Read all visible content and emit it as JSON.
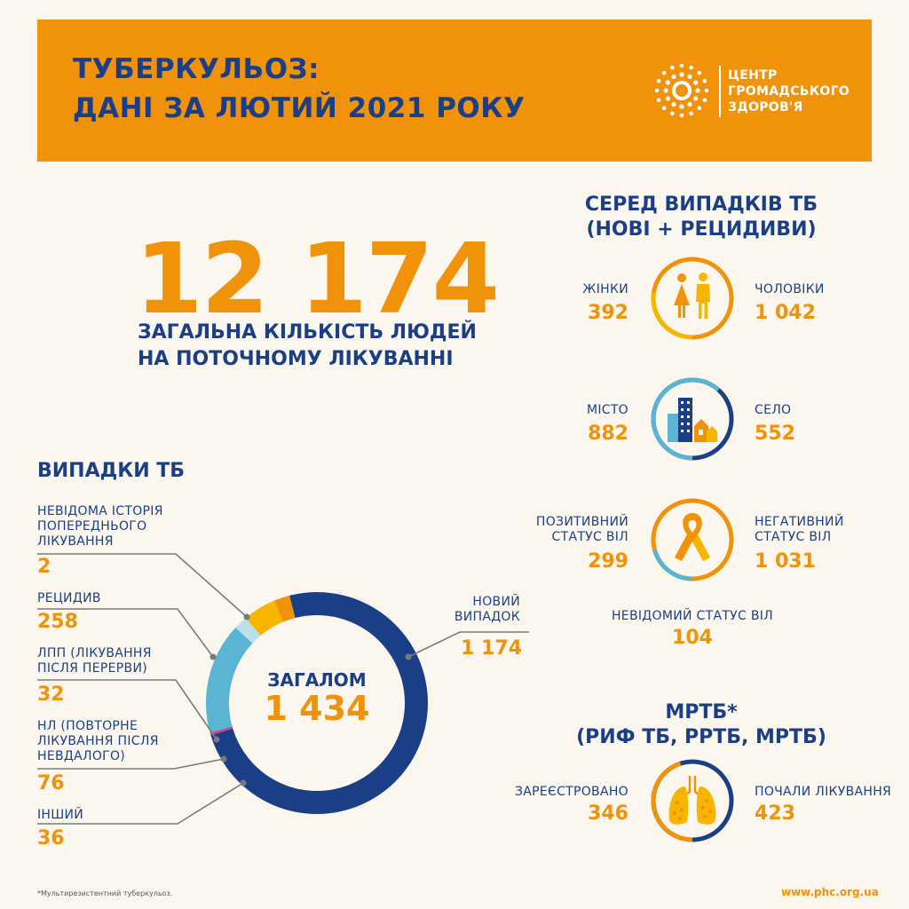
{
  "header": {
    "title_line1": "ТУБЕРКУЛЬОЗ:",
    "title_line2": "ДАНІ ЗА ЛЮТИЙ 2021 РОКУ",
    "logo_line1": "ЦЕНТР",
    "logo_line2": "ГРОМАДСЬКОГО",
    "logo_line3": "ЗДОРОВ'Я"
  },
  "headline": {
    "number": "12 174",
    "label_line1": "ЗАГАЛЬНА КІЛЬКІСТЬ ЛЮДЕЙ",
    "label_line2": "НА ПОТОЧНОМУ ЛІКУВАННІ"
  },
  "cases": {
    "title": "ВИПАДКИ ТБ",
    "total_label": "ЗАГАЛОМ",
    "total_value": "1 434",
    "items": [
      {
        "label_lines": [
          "НЕВІДОМА ІСТОРІЯ",
          "ПОПЕРЕДНЬОГО",
          "ЛІКУВАННЯ"
        ],
        "value": "2"
      },
      {
        "label_lines": [
          "РЕЦИДИВ"
        ],
        "value": "258"
      },
      {
        "label_lines": [
          "ЛПП (ЛІКУВАННЯ",
          "ПІСЛЯ ПЕРЕРВИ)"
        ],
        "value": "32"
      },
      {
        "label_lines": [
          "НЛ (ПОВТОРНЕ",
          "ЛІКУВАННЯ ПІСЛЯ",
          "НЕВДАЛОГО)"
        ],
        "value": "76"
      },
      {
        "label_lines": [
          "ІНШИЙ"
        ],
        "value": "36"
      }
    ],
    "new_case": {
      "label_lines": [
        "НОВИЙ",
        "ВИПАДОК"
      ],
      "value": "1 174"
    }
  },
  "chart_data": {
    "type": "pie",
    "categories": [
      "НОВИЙ ВИПАДОК",
      "НЕВІДОМА ІСТОРІЯ ПОПЕРЕДНЬОГО ЛІКУВАННЯ",
      "РЕЦИДИВ",
      "ЛПП (ЛІКУВАННЯ ПІСЛЯ ПЕРЕРВИ)",
      "НЛ (ПОВТОРНЕ ЛІКУВАННЯ ПІСЛЯ НЕВДАЛОГО)",
      "ІНШИЙ"
    ],
    "values": [
      1174,
      2,
      258,
      32,
      76,
      36
    ],
    "colors": [
      "#1a3f86",
      "#d2418f",
      "#5bb4d2",
      "#b9e0ec",
      "#f7b500",
      "#f0920a"
    ],
    "title": "ВИПАДКИ ТБ",
    "donut": true,
    "center_text": "ЗАГАЛОМ 1 434"
  },
  "among": {
    "title_line1": "СЕРЕД ВИПАДКІВ ТБ",
    "title_line2": "(НОВІ + РЕЦИДИВИ)",
    "gender": {
      "left_label": "ЖІНКИ",
      "left_value": "392",
      "right_label": "ЧОЛОВІКИ",
      "right_value": "1 042",
      "left_frac": 0.273
    },
    "place": {
      "left_label": "МІСТО",
      "left_value": "882",
      "right_label": "СЕЛО",
      "right_value": "552",
      "left_frac": 0.615
    },
    "hiv": {
      "left_label_line1": "ПОЗИТИВНИЙ",
      "left_label_line2": "СТАТУС ВІЛ",
      "left_value": "299",
      "right_label_line1": "НЕГАТИВНИЙ",
      "right_label_line2": "СТАТУС  ВІЛ",
      "right_value": "1 031",
      "unknown_label": "НЕВІДОМИЙ СТАТУС ВІЛ",
      "unknown_value": "104",
      "left_frac": 0.209
    }
  },
  "mdr": {
    "title_line1": "МРТБ*",
    "title_line2": "(РИФ ТБ, РРТБ, МРТБ)",
    "left_label": "ЗАРЕЄСТРОВАНО",
    "left_value": "346",
    "right_label": "ПОЧАЛИ ЛІКУВАННЯ",
    "right_value": "423",
    "left_frac": 0.45
  },
  "footer": {
    "note": "*Мультирезистентний туберкульоз.",
    "url": "www.phc.org.ua"
  },
  "colors": {
    "orange": "#f0920a",
    "navy": "#1a3f86",
    "light_blue": "#5bb4d2",
    "background": "#fcf7ee"
  }
}
